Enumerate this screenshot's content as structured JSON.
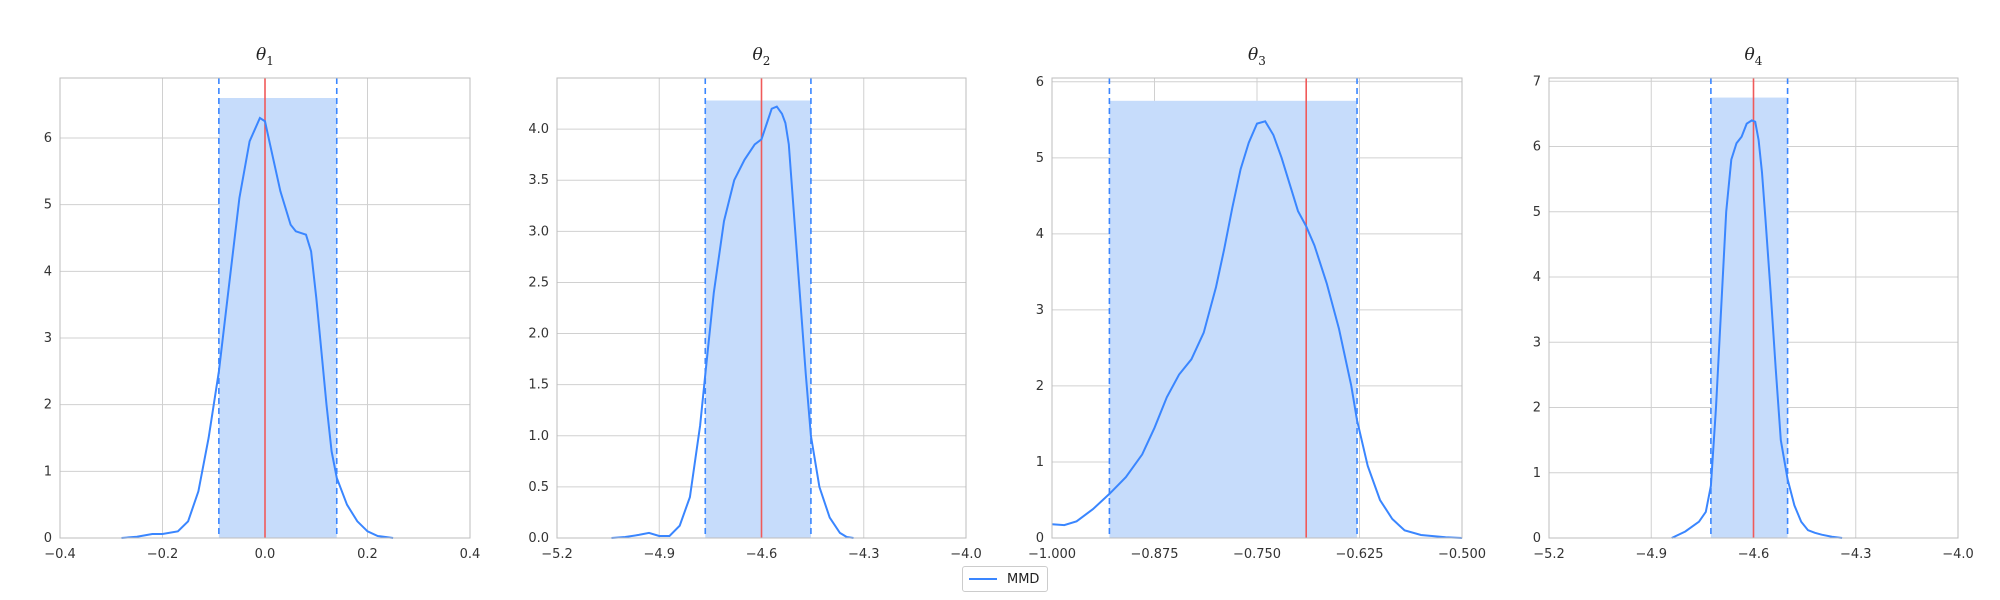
{
  "chart_data": [
    {
      "type": "line",
      "title_base": "θ",
      "title_sub": "1",
      "xlim": [
        -0.4,
        0.4
      ],
      "ylim": [
        0,
        6.9
      ],
      "xticks": [
        -0.4,
        -0.2,
        0.0,
        0.2,
        0.4
      ],
      "xtick_labels": [
        "−0.4",
        "−0.2",
        "0.0",
        "0.2",
        "0.4"
      ],
      "yticks": [
        0,
        1,
        2,
        3,
        4,
        5,
        6
      ],
      "ytick_labels": [
        "0",
        "1",
        "2",
        "3",
        "4",
        "5",
        "6"
      ],
      "grid": true,
      "true_value": 0.0,
      "interval": [
        -0.09,
        0.14
      ],
      "interval_height": 6.6,
      "series": [
        {
          "name": "MMD",
          "x": [
            -0.28,
            -0.25,
            -0.22,
            -0.2,
            -0.17,
            -0.15,
            -0.13,
            -0.11,
            -0.09,
            -0.07,
            -0.05,
            -0.03,
            -0.01,
            0.0,
            0.01,
            0.03,
            0.05,
            0.06,
            0.08,
            0.09,
            0.1,
            0.11,
            0.12,
            0.13,
            0.14,
            0.16,
            0.18,
            0.2,
            0.22,
            0.25
          ],
          "y": [
            0.0,
            0.02,
            0.06,
            0.06,
            0.1,
            0.25,
            0.7,
            1.5,
            2.5,
            3.8,
            5.1,
            5.95,
            6.3,
            6.25,
            5.9,
            5.2,
            4.7,
            4.6,
            4.55,
            4.3,
            3.6,
            2.8,
            2.0,
            1.3,
            0.9,
            0.5,
            0.25,
            0.1,
            0.03,
            0.0
          ]
        }
      ]
    },
    {
      "type": "line",
      "title_base": "θ",
      "title_sub": "2",
      "xlim": [
        -5.2,
        -4.0
      ],
      "ylim": [
        0,
        4.5
      ],
      "xticks": [
        -5.2,
        -4.9,
        -4.6,
        -4.3,
        -4.0
      ],
      "xtick_labels": [
        "−5.2",
        "−4.9",
        "−4.6",
        "−4.3",
        "−4.0"
      ],
      "yticks": [
        0,
        0.5,
        1.0,
        1.5,
        2.0,
        2.5,
        3.0,
        3.5,
        4.0
      ],
      "ytick_labels": [
        "0.0",
        "0.5",
        "1.0",
        "1.5",
        "2.0",
        "2.5",
        "3.0",
        "3.5",
        "4.0"
      ],
      "grid": true,
      "true_value": -4.6,
      "interval": [
        -4.765,
        -4.455
      ],
      "interval_height": 4.28,
      "series": [
        {
          "name": "MMD",
          "x": [
            -5.04,
            -5.0,
            -4.96,
            -4.93,
            -4.9,
            -4.87,
            -4.84,
            -4.81,
            -4.78,
            -4.765,
            -4.74,
            -4.71,
            -4.68,
            -4.65,
            -4.62,
            -4.6,
            -4.585,
            -4.57,
            -4.555,
            -4.54,
            -4.53,
            -4.52,
            -4.51,
            -4.49,
            -4.47,
            -4.455,
            -4.43,
            -4.4,
            -4.37,
            -4.35,
            -4.33
          ],
          "y": [
            0.0,
            0.01,
            0.03,
            0.05,
            0.02,
            0.02,
            0.12,
            0.4,
            1.1,
            1.6,
            2.4,
            3.1,
            3.5,
            3.7,
            3.85,
            3.9,
            4.05,
            4.2,
            4.22,
            4.15,
            4.06,
            3.85,
            3.4,
            2.5,
            1.6,
            1.0,
            0.5,
            0.2,
            0.05,
            0.01,
            0.0
          ]
        }
      ]
    },
    {
      "type": "line",
      "title_base": "θ",
      "title_sub": "3",
      "xlim": [
        -1.0,
        -0.5
      ],
      "ylim": [
        0,
        6.05
      ],
      "xticks": [
        -1.0,
        -0.875,
        -0.75,
        -0.625,
        -0.5
      ],
      "xtick_labels": [
        "−1.000",
        "−0.875",
        "−0.750",
        "−0.625",
        "−0.500"
      ],
      "yticks": [
        0,
        1,
        2,
        3,
        4,
        5,
        6
      ],
      "ytick_labels": [
        "0",
        "1",
        "2",
        "3",
        "4",
        "5",
        "6"
      ],
      "grid": true,
      "true_value": -0.69,
      "interval": [
        -0.93,
        -0.628
      ],
      "interval_height": 5.75,
      "series": [
        {
          "name": "MMD",
          "x": [
            -1.0,
            -0.985,
            -0.97,
            -0.95,
            -0.93,
            -0.91,
            -0.89,
            -0.875,
            -0.86,
            -0.845,
            -0.83,
            -0.815,
            -0.8,
            -0.79,
            -0.78,
            -0.77,
            -0.76,
            -0.75,
            -0.74,
            -0.73,
            -0.72,
            -0.71,
            -0.7,
            -0.69,
            -0.68,
            -0.665,
            -0.65,
            -0.635,
            -0.628,
            -0.615,
            -0.6,
            -0.585,
            -0.57,
            -0.55,
            -0.52,
            -0.5
          ],
          "y": [
            0.18,
            0.17,
            0.22,
            0.38,
            0.58,
            0.8,
            1.1,
            1.45,
            1.85,
            2.15,
            2.35,
            2.7,
            3.3,
            3.8,
            4.35,
            4.85,
            5.2,
            5.45,
            5.48,
            5.3,
            5.0,
            4.65,
            4.3,
            4.1,
            3.85,
            3.35,
            2.75,
            2.0,
            1.55,
            0.95,
            0.5,
            0.25,
            0.1,
            0.04,
            0.01,
            0.0
          ]
        }
      ]
    },
    {
      "type": "line",
      "title_base": "θ",
      "title_sub": "4",
      "xlim": [
        -5.2,
        -4.0
      ],
      "ylim": [
        0,
        7.05
      ],
      "xticks": [
        -5.2,
        -4.9,
        -4.6,
        -4.3,
        -4.0
      ],
      "xtick_labels": [
        "−5.2",
        "−4.9",
        "−4.6",
        "−4.3",
        "−4.0"
      ],
      "yticks": [
        0,
        1,
        2,
        3,
        4,
        5,
        6,
        7
      ],
      "ytick_labels": [
        "0",
        "1",
        "2",
        "3",
        "4",
        "5",
        "6",
        "7"
      ],
      "grid": true,
      "true_value": -4.6,
      "interval": [
        -4.725,
        -4.5
      ],
      "interval_height": 6.75,
      "series": [
        {
          "name": "MMD",
          "x": [
            -4.84,
            -4.8,
            -4.76,
            -4.74,
            -4.725,
            -4.71,
            -4.695,
            -4.68,
            -4.665,
            -4.65,
            -4.635,
            -4.62,
            -4.605,
            -4.595,
            -4.585,
            -4.575,
            -4.565,
            -4.55,
            -4.535,
            -4.52,
            -4.5,
            -4.48,
            -4.46,
            -4.44,
            -4.42,
            -4.4,
            -4.37,
            -4.34
          ],
          "y": [
            0.0,
            0.1,
            0.25,
            0.4,
            0.8,
            2.0,
            3.5,
            5.0,
            5.8,
            6.05,
            6.15,
            6.35,
            6.4,
            6.38,
            6.1,
            5.6,
            4.9,
            3.8,
            2.6,
            1.5,
            0.9,
            0.5,
            0.25,
            0.12,
            0.08,
            0.05,
            0.02,
            0.0
          ]
        }
      ]
    }
  ],
  "legend": {
    "label": "MMD"
  },
  "colors": {
    "curve": "#3a86ff",
    "interval_fill": "#c6dcfb",
    "interval_line": "#3a86ff",
    "true_line": "#f05a5a",
    "grid": "#d0d0d0",
    "axes": "#333333"
  }
}
